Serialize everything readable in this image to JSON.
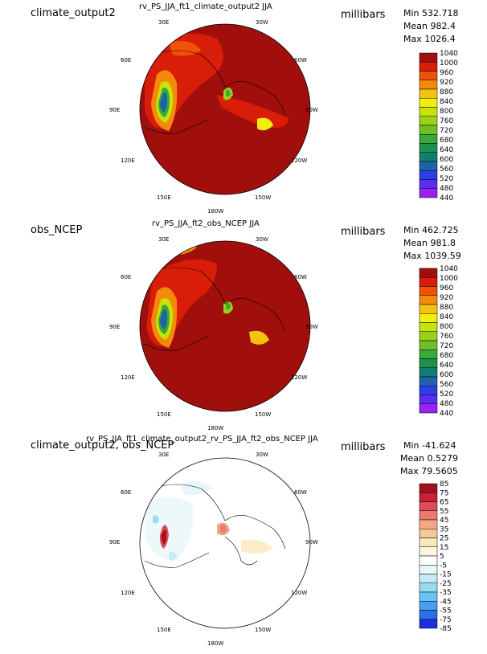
{
  "panels": [
    {
      "name": "climate_output2",
      "title": "rv_PS_JJA_ft1_climate_output2  JJA",
      "units": "millibars",
      "stats": {
        "min": "Min 532.718",
        "mean": "Mean 982.4",
        "max": "Max 1026.4"
      },
      "levels": [
        "1040",
        "1000",
        "960",
        "920",
        "880",
        "840",
        "800",
        "760",
        "720",
        "680",
        "640",
        "600",
        "560",
        "520",
        "480",
        "440"
      ],
      "colors": [
        "#a00f0c",
        "#d81d08",
        "#f0520a",
        "#f48a0c",
        "#f5c20f",
        "#f0f00c",
        "#c6e40c",
        "#9ad21a",
        "#6ebe28",
        "#3aa83a",
        "#1b914c",
        "#127e72",
        "#1e62a8",
        "#2e3ee8",
        "#5a2ef2",
        "#9b20f2"
      ]
    },
    {
      "name": "obs_NCEP",
      "title": "rv_PS_JJA_ft2_obs_NCEP  JJA",
      "units": "millibars",
      "stats": {
        "min": "Min 462.725",
        "mean": "Mean 981.8",
        "max": "Max 1039.59"
      },
      "levels": [
        "1040",
        "1000",
        "960",
        "920",
        "880",
        "840",
        "800",
        "760",
        "720",
        "680",
        "640",
        "600",
        "560",
        "520",
        "480",
        "440"
      ],
      "colors": [
        "#a00f0c",
        "#d81d08",
        "#f0520a",
        "#f48a0c",
        "#f5c20f",
        "#f0f00c",
        "#c6e40c",
        "#9ad21a",
        "#6ebe28",
        "#3aa83a",
        "#1b914c",
        "#127e72",
        "#1e62a8",
        "#2e3ee8",
        "#5a2ef2",
        "#9b20f2"
      ]
    },
    {
      "name": "climate_output2, obs_NCEP",
      "title": "rv_PS_JJA_ft1_climate_output2_rv_PS_JJA_ft2_obs_NCEP  JJA",
      "units": "millibars",
      "stats": {
        "min": "Min -41.624",
        "mean": "Mean 0.5279",
        "max": "Max 79.5605"
      },
      "levels": [
        "85",
        "75",
        "65",
        "55",
        "45",
        "35",
        "25",
        "15",
        "5",
        "-5",
        "-15",
        "-25",
        "-35",
        "-45",
        "-55",
        "-75",
        "-85"
      ],
      "colors": [
        "#a0101e",
        "#c8203a",
        "#de4a56",
        "#ec7a72",
        "#f4a684",
        "#f8c898",
        "#fae6bc",
        "#fbf6dc",
        "#ffffff",
        "#e8f6fa",
        "#c4ecf6",
        "#96dcf4",
        "#6cc2f2",
        "#4a9ef0",
        "#2c70e8",
        "#1c2ee0"
      ]
    }
  ],
  "map_labels": {
    "top_left": "30E",
    "top_right": "30W",
    "upper_left": "60E",
    "upper_right": "60W",
    "mid_left": "90E",
    "mid_right": "90W",
    "lower_left": "120E",
    "lower_right": "120W",
    "bottom_left": "150E",
    "bottom_right": "150W",
    "bottom": "180W"
  },
  "chart_data": [
    {
      "type": "heatmap",
      "title": "rv_PS_JJA_ft1_climate_output2  JJA",
      "units": "millibars",
      "min": 532.718,
      "mean": 982.4,
      "max": 1026.4,
      "colorbar_levels": [
        1040,
        1000,
        960,
        920,
        880,
        840,
        800,
        760,
        720,
        680,
        640,
        600,
        560,
        520,
        480,
        440
      ]
    },
    {
      "type": "heatmap",
      "title": "rv_PS_JJA_ft2_obs_NCEP  JJA",
      "units": "millibars",
      "min": 462.725,
      "mean": 981.8,
      "max": 1039.59,
      "colorbar_levels": [
        1040,
        1000,
        960,
        920,
        880,
        840,
        800,
        760,
        720,
        680,
        640,
        600,
        560,
        520,
        480,
        440
      ]
    },
    {
      "type": "heatmap",
      "title": "rv_PS_JJA_ft1_climate_output2_rv_PS_JJA_ft2_obs_NCEP  JJA",
      "units": "millibars",
      "min": -41.624,
      "mean": 0.5279,
      "max": 79.5605,
      "colorbar_levels": [
        85,
        75,
        65,
        55,
        45,
        35,
        25,
        15,
        5,
        -5,
        -15,
        -25,
        -35,
        -45,
        -55,
        -75,
        -85
      ]
    }
  ]
}
